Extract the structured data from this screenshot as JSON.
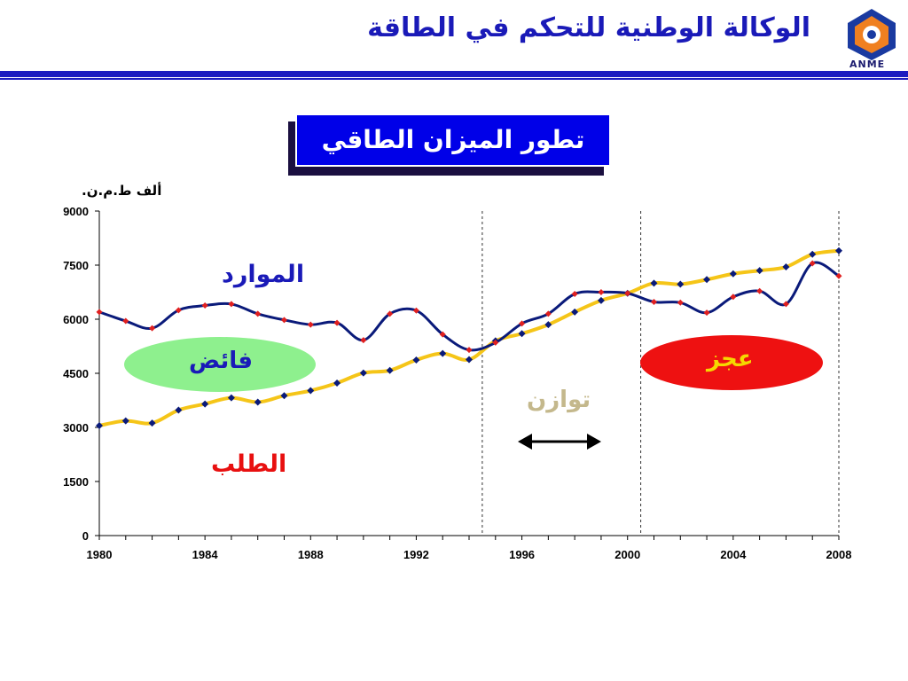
{
  "header": {
    "title": "الوكالة الوطنية للتحكم في الطاقة",
    "logo_text": "ANME"
  },
  "colors": {
    "header_blue": "#1c1cc0",
    "resources_line": "#0a1a7a",
    "demand_line": "#f5c518",
    "resource_markers": "#e02020",
    "demand_markers": "#0a1a7a",
    "surplus_ellipse": "#8ef08e",
    "deficit_ellipse": "#ee1111"
  },
  "chart_data": {
    "type": "line",
    "title": "تطور الميزان الطاقي",
    "ylabel": "ألف ط.م.ن.",
    "xlabel": "",
    "ylim": [
      0,
      9000
    ],
    "xlim": [
      1980,
      2008
    ],
    "yticks": [
      "0",
      "1500",
      "3000",
      "4500",
      "6000",
      "7500",
      "9000"
    ],
    "xtick_labels": [
      "1980",
      "1984",
      "1988",
      "1992",
      "1996",
      "2000",
      "2004",
      "2008"
    ],
    "x": [
      1980,
      1981,
      1982,
      1983,
      1984,
      1985,
      1986,
      1987,
      1988,
      1989,
      1990,
      1991,
      1992,
      1993,
      1994,
      1995,
      1996,
      1997,
      1998,
      1999,
      2000,
      2001,
      2002,
      2003,
      2004,
      2005,
      2006,
      2007,
      2008
    ],
    "series": [
      {
        "name": "الموارد",
        "values": [
          6200,
          5950,
          5750,
          6250,
          6380,
          6420,
          6150,
          5980,
          5850,
          5900,
          5420,
          6150,
          6240,
          5580,
          5150,
          5350,
          5880,
          6150,
          6700,
          6750,
          6720,
          6480,
          6460,
          6180,
          6620,
          6780,
          6420,
          7550,
          7200
        ]
      },
      {
        "name": "الطلب",
        "values": [
          3050,
          3180,
          3120,
          3480,
          3650,
          3820,
          3700,
          3880,
          4020,
          4230,
          4510,
          4580,
          4870,
          5050,
          4880,
          5400,
          5600,
          5850,
          6200,
          6520,
          6720,
          7000,
          6970,
          7100,
          7260,
          7350,
          7450,
          7800,
          7900
        ]
      }
    ],
    "vlines": [
      1994.5,
      2000.5,
      2008
    ],
    "annotations": {
      "resources": "الموارد",
      "demand": "الطلب",
      "surplus": "فائض",
      "deficit": "عجز",
      "balance": "توازن"
    }
  }
}
